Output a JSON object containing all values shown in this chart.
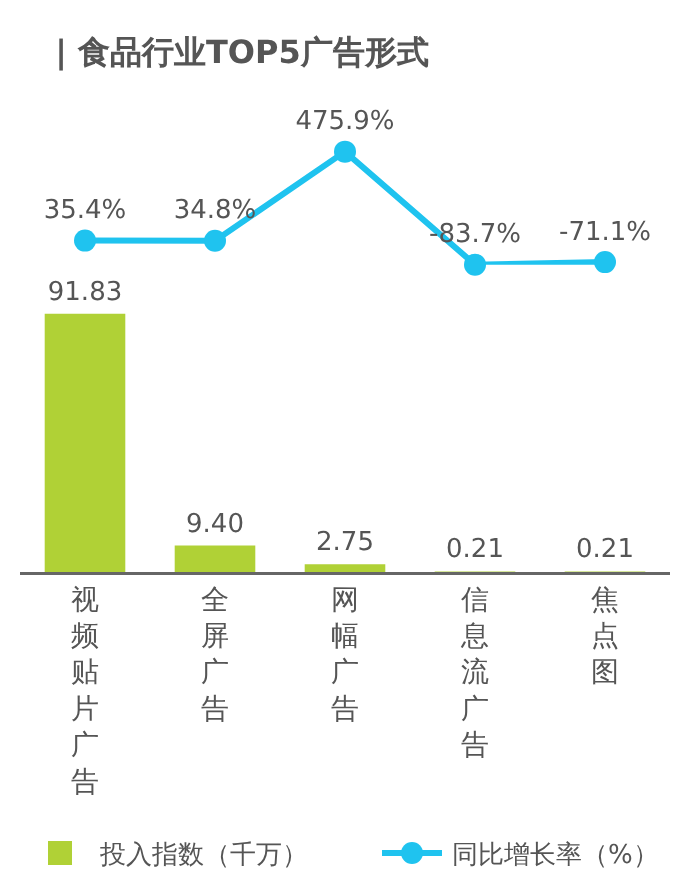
{
  "chart_data": [
    {
      "type": "line",
      "title": "| 食品行业TOP5广告形式",
      "categories": [
        "视频贴片广告",
        "全屏广告",
        "网幅广告",
        "信息流广告",
        "焦点图"
      ],
      "series": [
        {
          "name": "同比增长率（%）",
          "color": "#1fc3ef",
          "values": [
            35.4,
            34.8,
            475.9,
            -83.7,
            -71.1
          ],
          "value_labels": [
            "35.4%",
            "34.8%",
            "475.9%",
            "-83.7%",
            "-71.1%"
          ]
        }
      ],
      "marker": "circle",
      "tick_labels": false,
      "grid": false,
      "legend": "bottom right"
    },
    {
      "type": "bar",
      "categories": [
        "视频贴片广告",
        "全屏广告",
        "网幅广告",
        "信息流广告",
        "焦点图"
      ],
      "series": [
        {
          "name": "投入指数（千万）",
          "color": "#b0d136",
          "values": [
            91.83,
            9.4,
            2.75,
            0.21,
            0.21
          ],
          "value_labels": [
            "91.83",
            "9.40",
            "2.75",
            "0.21",
            "0.21"
          ]
        }
      ],
      "tick_labels": "x",
      "grid": false,
      "legend": "bottom left"
    }
  ]
}
